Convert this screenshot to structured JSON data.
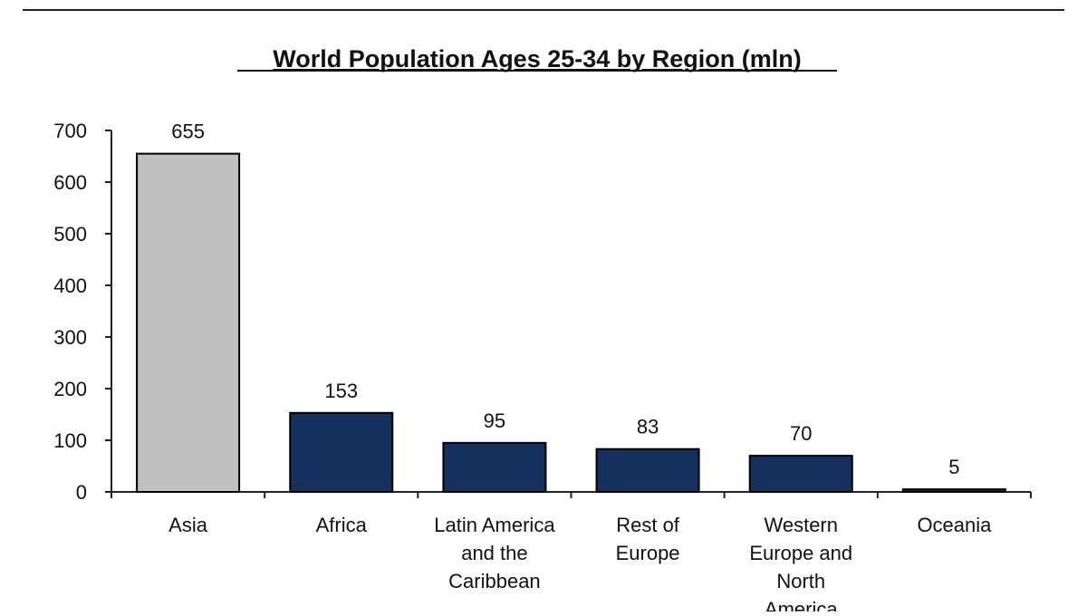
{
  "chart_data": {
    "type": "bar",
    "title": "World Population Ages 25-34 by Region (mln)",
    "categories": [
      [
        "Asia"
      ],
      [
        "Africa"
      ],
      [
        "Latin America",
        "and the",
        "Caribbean"
      ],
      [
        "Rest of",
        "Europe"
      ],
      [
        "Western",
        "Europe and",
        "North",
        "America"
      ],
      [
        "Oceania"
      ]
    ],
    "values": [
      655,
      153,
      95,
      83,
      70,
      5
    ],
    "data_labels": [
      "655",
      "153",
      "95",
      "83",
      "70",
      "5"
    ],
    "bar_colors": [
      "#c0c0c0",
      "#15305e",
      "#15305e",
      "#15305e",
      "#15305e",
      "#15305e"
    ],
    "ylim": [
      0,
      700
    ],
    "yticks": [
      0,
      100,
      200,
      300,
      400,
      500,
      600,
      700
    ],
    "ytick_labels": [
      "0",
      "100",
      "200",
      "300",
      "400",
      "500",
      "600",
      "700"
    ],
    "xlabel": "",
    "ylabel": "",
    "grid": false,
    "legend": "none"
  },
  "colors": {
    "text": "#111111",
    "axis": "#222222",
    "bar_border": "#000000"
  }
}
